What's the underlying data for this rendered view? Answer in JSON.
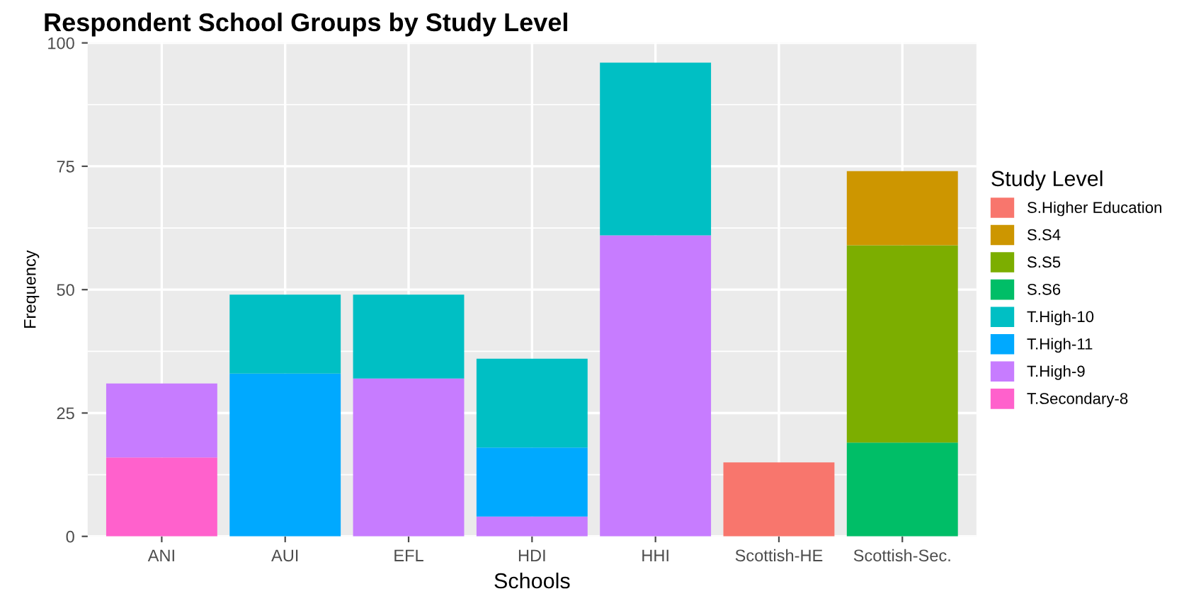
{
  "chart_data": {
    "type": "bar",
    "title": "Respondent School Groups by Study Level",
    "xlabel": "Schools",
    "ylabel": "Frequency",
    "legend_title": "Study Level",
    "categories": [
      "ANI",
      "AUI",
      "EFL",
      "HDI",
      "HHI",
      "Scottish-HE",
      "Scottish-Sec."
    ],
    "stacked": true,
    "ylim": [
      0,
      100
    ],
    "yticks": [
      0,
      25,
      50,
      75,
      100
    ],
    "grid": true,
    "legend": "right",
    "series": [
      {
        "name": "T.Secondary-8",
        "color": "#ff61cc",
        "values": [
          16,
          null,
          null,
          null,
          null,
          null,
          null
        ]
      },
      {
        "name": "T.High-9",
        "color": "#c77cff",
        "values": [
          15,
          null,
          32,
          4,
          61,
          null,
          null
        ]
      },
      {
        "name": "T.High-11",
        "color": "#00a9ff",
        "values": [
          null,
          33,
          null,
          14,
          null,
          null,
          null
        ]
      },
      {
        "name": "T.High-10",
        "color": "#00bfc4",
        "values": [
          null,
          16,
          17,
          18,
          35,
          null,
          null
        ]
      },
      {
        "name": "S.S6",
        "color": "#00be67",
        "values": [
          null,
          null,
          null,
          null,
          null,
          null,
          19
        ]
      },
      {
        "name": "S.S5",
        "color": "#7cae00",
        "values": [
          null,
          null,
          null,
          null,
          null,
          null,
          40
        ]
      },
      {
        "name": "S.S4",
        "color": "#cd9600",
        "values": [
          null,
          null,
          null,
          null,
          null,
          null,
          15
        ]
      },
      {
        "name": "S.Higher Education",
        "color": "#f8766d",
        "values": [
          null,
          null,
          null,
          null,
          null,
          15,
          null
        ]
      }
    ]
  }
}
